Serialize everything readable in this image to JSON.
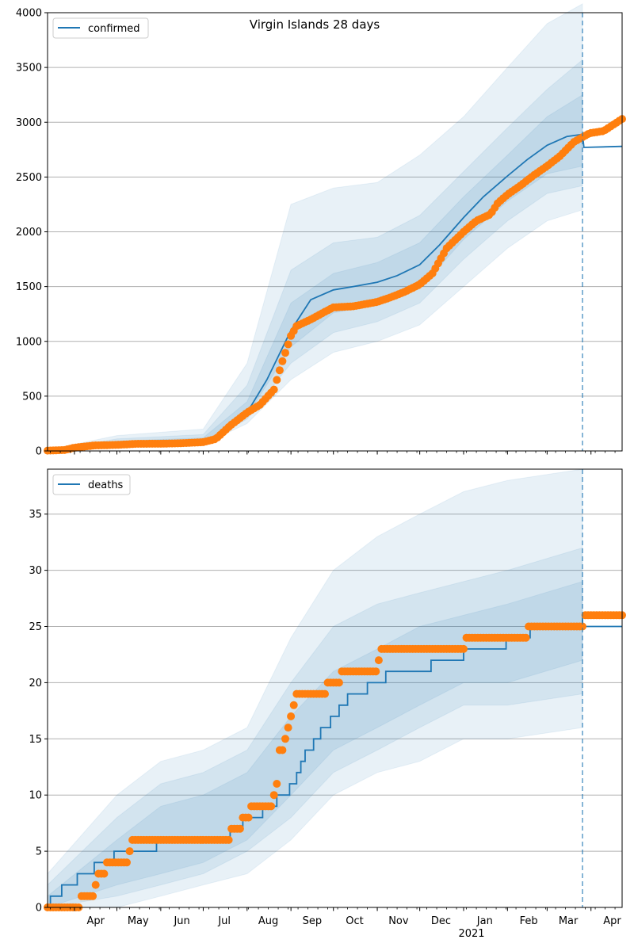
{
  "title": "Virgin Islands 28 days",
  "colors": {
    "model": "#1f77b4",
    "observed": "#ff7f0e",
    "band": "#1f77b4",
    "grid": "#b0b0b0",
    "axis": "#000000"
  },
  "x_axis": {
    "month_labels": [
      "Apr",
      "May",
      "Jun",
      "Jul",
      "Aug",
      "Sep",
      "Oct",
      "Nov",
      "Dec",
      "Jan",
      "Feb",
      "Mar",
      "Apr"
    ],
    "year_label": "2021",
    "range": [
      "2020-03-13",
      "2021-04-23"
    ],
    "forecast_start": "2021-03-26"
  },
  "chart_data": [
    {
      "type": "line",
      "legend": "confirmed",
      "legend_position": "top-left",
      "ylim": [
        0,
        4000
      ],
      "yticks": [
        0,
        500,
        1000,
        1500,
        2000,
        2500,
        3000,
        3500,
        4000
      ],
      "grid": "horizontal",
      "model_line": [
        [
          "2020-03-13",
          0
        ],
        [
          "2020-04-01",
          20
        ],
        [
          "2020-05-01",
          60
        ],
        [
          "2020-06-01",
          70
        ],
        [
          "2020-07-01",
          90
        ],
        [
          "2020-07-15",
          150
        ],
        [
          "2020-08-01",
          350
        ],
        [
          "2020-08-15",
          650
        ],
        [
          "2020-09-01",
          1100
        ],
        [
          "2020-09-15",
          1380
        ],
        [
          "2020-10-01",
          1470
        ],
        [
          "2020-10-15",
          1500
        ],
        [
          "2020-11-01",
          1540
        ],
        [
          "2020-11-15",
          1600
        ],
        [
          "2020-12-01",
          1700
        ],
        [
          "2020-12-15",
          1880
        ],
        [
          "2021-01-01",
          2130
        ],
        [
          "2021-01-15",
          2320
        ],
        [
          "2021-02-01",
          2510
        ],
        [
          "2021-02-15",
          2660
        ],
        [
          "2021-03-01",
          2790
        ],
        [
          "2021-03-15",
          2870
        ],
        [
          "2021-03-26",
          2890
        ],
        [
          "2021-03-27",
          2770
        ],
        [
          "2021-04-23",
          2780
        ]
      ],
      "bands": [
        {
          "lower": [
            [
              "2020-03-13",
              0
            ],
            [
              "2020-05-01",
              30
            ],
            [
              "2020-07-01",
              60
            ],
            [
              "2020-08-01",
              250
            ],
            [
              "2020-09-01",
              650
            ],
            [
              "2020-10-01",
              900
            ],
            [
              "2020-11-01",
              1000
            ],
            [
              "2020-12-01",
              1150
            ],
            [
              "2021-01-01",
              1500
            ],
            [
              "2021-02-01",
              1850
            ],
            [
              "2021-03-01",
              2100
            ],
            [
              "2021-03-26",
              2200
            ]
          ],
          "upper": [
            [
              "2020-03-13",
              10
            ],
            [
              "2020-05-01",
              140
            ],
            [
              "2020-07-01",
              200
            ],
            [
              "2020-08-01",
              800
            ],
            [
              "2020-09-01",
              2250
            ],
            [
              "2020-10-01",
              2400
            ],
            [
              "2020-11-01",
              2450
            ],
            [
              "2020-12-01",
              2700
            ],
            [
              "2021-01-01",
              3050
            ],
            [
              "2021-02-01",
              3500
            ],
            [
              "2021-03-01",
              3900
            ],
            [
              "2021-03-26",
              4100
            ]
          ]
        },
        {
          "lower": [
            [
              "2020-03-13",
              0
            ],
            [
              "2020-05-01",
              40
            ],
            [
              "2020-07-01",
              70
            ],
            [
              "2020-08-01",
              290
            ],
            [
              "2020-09-01",
              800
            ],
            [
              "2020-10-01",
              1080
            ],
            [
              "2020-11-01",
              1180
            ],
            [
              "2020-12-01",
              1350
            ],
            [
              "2021-01-01",
              1750
            ],
            [
              "2021-02-01",
              2100
            ],
            [
              "2021-03-01",
              2350
            ],
            [
              "2021-03-26",
              2420
            ]
          ],
          "upper": [
            [
              "2020-03-13",
              5
            ],
            [
              "2020-05-01",
              110
            ],
            [
              "2020-07-01",
              150
            ],
            [
              "2020-08-01",
              600
            ],
            [
              "2020-09-01",
              1650
            ],
            [
              "2020-10-01",
              1900
            ],
            [
              "2020-11-01",
              1950
            ],
            [
              "2020-12-01",
              2150
            ],
            [
              "2021-01-01",
              2550
            ],
            [
              "2021-02-01",
              2950
            ],
            [
              "2021-03-01",
              3300
            ],
            [
              "2021-03-26",
              3570
            ]
          ]
        },
        {
          "lower": [
            [
              "2020-03-13",
              0
            ],
            [
              "2020-05-01",
              50
            ],
            [
              "2020-07-01",
              80
            ],
            [
              "2020-08-01",
              320
            ],
            [
              "2020-09-01",
              950
            ],
            [
              "2020-10-01",
              1260
            ],
            [
              "2020-11-01",
              1330
            ],
            [
              "2020-12-01",
              1480
            ],
            [
              "2021-01-01",
              1930
            ],
            [
              "2021-02-01",
              2280
            ],
            [
              "2021-03-01",
              2530
            ],
            [
              "2021-03-26",
              2600
            ]
          ],
          "upper": [
            [
              "2020-03-13",
              3
            ],
            [
              "2020-05-01",
              90
            ],
            [
              "2020-07-01",
              120
            ],
            [
              "2020-08-01",
              450
            ],
            [
              "2020-09-01",
              1350
            ],
            [
              "2020-10-01",
              1620
            ],
            [
              "2020-11-01",
              1720
            ],
            [
              "2020-12-01",
              1900
            ],
            [
              "2021-01-01",
              2320
            ],
            [
              "2021-02-01",
              2700
            ],
            [
              "2021-03-01",
              3050
            ],
            [
              "2021-03-26",
              3250
            ]
          ]
        }
      ],
      "observed": [
        [
          "2020-03-13",
          3
        ],
        [
          "2020-03-25",
          8
        ],
        [
          "2020-04-01",
          30
        ],
        [
          "2020-04-15",
          50
        ],
        [
          "2020-05-01",
          55
        ],
        [
          "2020-05-15",
          65
        ],
        [
          "2020-06-01",
          66
        ],
        [
          "2020-06-15",
          70
        ],
        [
          "2020-07-01",
          80
        ],
        [
          "2020-07-10",
          110
        ],
        [
          "2020-07-20",
          230
        ],
        [
          "2020-08-01",
          350
        ],
        [
          "2020-08-10",
          420
        ],
        [
          "2020-08-20",
          560
        ],
        [
          "2020-08-25",
          780
        ],
        [
          "2020-09-01",
          1050
        ],
        [
          "2020-09-05",
          1140
        ],
        [
          "2020-09-15",
          1200
        ],
        [
          "2020-09-25",
          1270
        ],
        [
          "2020-10-01",
          1310
        ],
        [
          "2020-10-15",
          1320
        ],
        [
          "2020-11-01",
          1360
        ],
        [
          "2020-11-10",
          1400
        ],
        [
          "2020-11-20",
          1450
        ],
        [
          "2020-12-01",
          1520
        ],
        [
          "2020-12-10",
          1620
        ],
        [
          "2020-12-20",
          1850
        ],
        [
          "2021-01-01",
          2000
        ],
        [
          "2021-01-10",
          2100
        ],
        [
          "2021-01-20",
          2160
        ],
        [
          "2021-01-25",
          2260
        ],
        [
          "2021-02-01",
          2340
        ],
        [
          "2021-02-10",
          2420
        ],
        [
          "2021-02-20",
          2520
        ],
        [
          "2021-03-01",
          2600
        ],
        [
          "2021-03-10",
          2690
        ],
        [
          "2021-03-20",
          2820
        ],
        [
          "2021-03-31",
          2900
        ],
        [
          "2021-04-10",
          2920
        ],
        [
          "2021-04-23",
          3030
        ]
      ]
    },
    {
      "type": "line",
      "legend": "deaths",
      "legend_position": "top-left",
      "ylim": [
        0,
        39
      ],
      "yticks": [
        0,
        5,
        10,
        15,
        20,
        25,
        30,
        35
      ],
      "grid": "horizontal",
      "model_steps": [
        [
          "2020-03-13",
          0
        ],
        [
          "2020-03-15",
          1
        ],
        [
          "2020-03-23",
          2
        ],
        [
          "2020-04-03",
          3
        ],
        [
          "2020-04-15",
          4
        ],
        [
          "2020-04-29",
          5
        ],
        [
          "2020-05-29",
          6
        ],
        [
          "2020-07-20",
          7
        ],
        [
          "2020-07-29",
          8
        ],
        [
          "2020-08-12",
          9
        ],
        [
          "2020-08-22",
          10
        ],
        [
          "2020-08-31",
          11
        ],
        [
          "2020-09-05",
          12
        ],
        [
          "2020-09-08",
          13
        ],
        [
          "2020-09-11",
          14
        ],
        [
          "2020-09-17",
          15
        ],
        [
          "2020-09-22",
          16
        ],
        [
          "2020-09-29",
          17
        ],
        [
          "2020-10-05",
          18
        ],
        [
          "2020-10-11",
          19
        ],
        [
          "2020-10-25",
          20
        ],
        [
          "2020-11-07",
          21
        ],
        [
          "2020-12-09",
          22
        ],
        [
          "2021-01-01",
          23
        ],
        [
          "2021-01-31",
          24
        ],
        [
          "2021-02-17",
          25
        ],
        [
          "2021-03-26",
          26
        ],
        [
          "2021-03-26",
          25
        ],
        [
          "2021-04-23",
          25
        ]
      ],
      "bands": [
        {
          "lower": [
            [
              "2020-03-13",
              0
            ],
            [
              "2020-05-01",
              0
            ],
            [
              "2020-06-01",
              1
            ],
            [
              "2020-07-01",
              2
            ],
            [
              "2020-08-01",
              3
            ],
            [
              "2020-09-01",
              6
            ],
            [
              "2020-10-01",
              10
            ],
            [
              "2020-11-01",
              12
            ],
            [
              "2020-12-01",
              13
            ],
            [
              "2021-01-01",
              15
            ],
            [
              "2021-02-01",
              15
            ],
            [
              "2021-03-26",
              16
            ]
          ],
          "upper": [
            [
              "2020-03-13",
              3
            ],
            [
              "2020-05-01",
              10
            ],
            [
              "2020-06-01",
              13
            ],
            [
              "2020-07-01",
              14
            ],
            [
              "2020-08-01",
              16
            ],
            [
              "2020-09-01",
              24
            ],
            [
              "2020-10-01",
              30
            ],
            [
              "2020-11-01",
              33
            ],
            [
              "2020-12-01",
              35
            ],
            [
              "2021-01-01",
              37
            ],
            [
              "2021-02-01",
              38
            ],
            [
              "2021-03-26",
              39
            ]
          ]
        },
        {
          "lower": [
            [
              "2020-03-13",
              0
            ],
            [
              "2020-05-01",
              1
            ],
            [
              "2020-06-01",
              2
            ],
            [
              "2020-07-01",
              3
            ],
            [
              "2020-08-01",
              5
            ],
            [
              "2020-09-01",
              8
            ],
            [
              "2020-10-01",
              12
            ],
            [
              "2020-11-01",
              14
            ],
            [
              "2020-12-01",
              16
            ],
            [
              "2021-01-01",
              18
            ],
            [
              "2021-02-01",
              18
            ],
            [
              "2021-03-26",
              19
            ]
          ],
          "upper": [
            [
              "2020-03-13",
              2
            ],
            [
              "2020-05-01",
              8
            ],
            [
              "2020-06-01",
              11
            ],
            [
              "2020-07-01",
              12
            ],
            [
              "2020-08-01",
              14
            ],
            [
              "2020-09-01",
              20
            ],
            [
              "2020-10-01",
              25
            ],
            [
              "2020-11-01",
              27
            ],
            [
              "2020-12-01",
              28
            ],
            [
              "2021-01-01",
              29
            ],
            [
              "2021-02-01",
              30
            ],
            [
              "2021-03-26",
              32
            ]
          ]
        },
        {
          "lower": [
            [
              "2020-03-13",
              0
            ],
            [
              "2020-05-01",
              2
            ],
            [
              "2020-06-01",
              3
            ],
            [
              "2020-07-01",
              4
            ],
            [
              "2020-08-01",
              6
            ],
            [
              "2020-09-01",
              10
            ],
            [
              "2020-10-01",
              14
            ],
            [
              "2020-11-01",
              16
            ],
            [
              "2020-12-01",
              18
            ],
            [
              "2021-01-01",
              20
            ],
            [
              "2021-02-01",
              20
            ],
            [
              "2021-03-26",
              22
            ]
          ],
          "upper": [
            [
              "2020-03-13",
              1
            ],
            [
              "2020-05-01",
              6
            ],
            [
              "2020-06-01",
              9
            ],
            [
              "2020-07-01",
              10
            ],
            [
              "2020-08-01",
              12
            ],
            [
              "2020-09-01",
              17
            ],
            [
              "2020-10-01",
              21
            ],
            [
              "2020-11-01",
              23
            ],
            [
              "2020-12-01",
              25
            ],
            [
              "2021-01-01",
              26
            ],
            [
              "2021-02-01",
              27
            ],
            [
              "2021-03-26",
              29
            ]
          ]
        }
      ],
      "observed_steps": [
        [
          "2020-03-13",
          0
        ],
        [
          "2020-04-05",
          1
        ],
        [
          "2020-04-16",
          2
        ],
        [
          "2020-04-17",
          3
        ],
        [
          "2020-04-24",
          4
        ],
        [
          "2020-05-10",
          5
        ],
        [
          "2020-05-11",
          6
        ],
        [
          "2020-07-21",
          7
        ],
        [
          "2020-07-28",
          8
        ],
        [
          "2020-08-04",
          9
        ],
        [
          "2020-08-20",
          10
        ],
        [
          "2020-08-22",
          11
        ],
        [
          "2020-08-23",
          12
        ],
        [
          "2020-08-24",
          14
        ],
        [
          "2020-08-28",
          15
        ],
        [
          "2020-08-30",
          16
        ],
        [
          "2020-09-01",
          17
        ],
        [
          "2020-09-02",
          18
        ],
        [
          "2020-09-05",
          19
        ],
        [
          "2020-09-27",
          20
        ],
        [
          "2020-10-07",
          21
        ],
        [
          "2020-11-02",
          22
        ],
        [
          "2020-11-03",
          23
        ],
        [
          "2021-01-02",
          24
        ],
        [
          "2021-02-16",
          25
        ],
        [
          "2021-03-28",
          26
        ]
      ],
      "observed_end": "2021-04-23"
    }
  ]
}
